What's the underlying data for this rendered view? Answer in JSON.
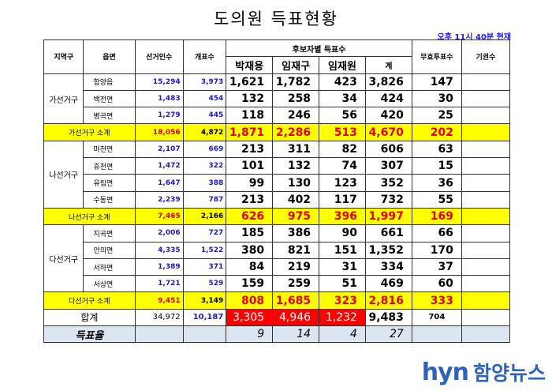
{
  "title": "도의원 득표현황",
  "timestamp": "오후 11시 40분 현재",
  "headers": {
    "region": "지역구",
    "town": "읍면",
    "voters": "선거인수",
    "ballots": "개표수",
    "candidates_group": "후보자별 득표수",
    "candidates": [
      "박재용",
      "임재구",
      "임재원"
    ],
    "sum": "계",
    "invalid": "무효투표수",
    "abstain": "기권수"
  },
  "districts": [
    {
      "name": "가선거구",
      "rows": [
        {
          "town": "함양읍",
          "voters": "15,294",
          "ballots": "3,973",
          "c1": "1,621",
          "c2": "1,782",
          "c3": "423",
          "sum": "3,826",
          "invalid": "147"
        },
        {
          "town": "백전면",
          "voters": "1,483",
          "ballots": "454",
          "c1": "132",
          "c2": "258",
          "c3": "34",
          "sum": "424",
          "invalid": "30"
        },
        {
          "town": "병곡면",
          "voters": "1,279",
          "ballots": "445",
          "c1": "118",
          "c2": "246",
          "c3": "56",
          "sum": "420",
          "invalid": "25"
        }
      ],
      "subtotal": {
        "label": "가선거구 소계",
        "voters": "18,056",
        "ballots": "4,872",
        "c1": "1,871",
        "c2": "2,286",
        "c3": "513",
        "sum": "4,670",
        "invalid": "202"
      }
    },
    {
      "name": "나선거구",
      "rows": [
        {
          "town": "마천면",
          "voters": "2,107",
          "ballots": "669",
          "c1": "213",
          "c2": "311",
          "c3": "82",
          "sum": "606",
          "invalid": "63"
        },
        {
          "town": "휴천면",
          "voters": "1,472",
          "ballots": "322",
          "c1": "101",
          "c2": "132",
          "c3": "74",
          "sum": "307",
          "invalid": "15"
        },
        {
          "town": "유림면",
          "voters": "1,647",
          "ballots": "388",
          "c1": "99",
          "c2": "130",
          "c3": "123",
          "sum": "352",
          "invalid": "36"
        },
        {
          "town": "수동면",
          "voters": "2,239",
          "ballots": "787",
          "c1": "213",
          "c2": "402",
          "c3": "117",
          "sum": "732",
          "invalid": "55"
        }
      ],
      "subtotal": {
        "label": "나선거구 소계",
        "voters": "7,465",
        "ballots": "2,166",
        "c1": "626",
        "c2": "975",
        "c3": "396",
        "sum": "1,997",
        "invalid": "169"
      }
    },
    {
      "name": "다선거구",
      "rows": [
        {
          "town": "지곡면",
          "voters": "2,006",
          "ballots": "727",
          "c1": "185",
          "c2": "386",
          "c3": "90",
          "sum": "661",
          "invalid": "66"
        },
        {
          "town": "안의면",
          "voters": "4,335",
          "ballots": "1,522",
          "c1": "380",
          "c2": "821",
          "c3": "151",
          "sum": "1,352",
          "invalid": "170"
        },
        {
          "town": "서하면",
          "voters": "1,389",
          "ballots": "371",
          "c1": "84",
          "c2": "219",
          "c3": "31",
          "sum": "334",
          "invalid": "37"
        },
        {
          "town": "서상면",
          "voters": "1,721",
          "ballots": "529",
          "c1": "159",
          "c2": "259",
          "c3": "51",
          "sum": "469",
          "invalid": "60"
        }
      ],
      "subtotal": {
        "label": "다선거구 소계",
        "voters": "9,451",
        "ballots": "3,149",
        "c1": "808",
        "c2": "1,685",
        "c3": "323",
        "sum": "2,816",
        "invalid": "333"
      }
    }
  ],
  "total": {
    "label": "합계",
    "voters": "34,972",
    "ballots": "10,187",
    "c1": "3,305",
    "c2": "4,946",
    "c3": "1,232",
    "sum": "9,483",
    "invalid": "704"
  },
  "rate": {
    "label": "득표율",
    "c1": "9",
    "c2": "14",
    "c3": "4",
    "sum": "27"
  },
  "logo": {
    "en": "hyn",
    "ko": "함양뉴스"
  },
  "colors": {
    "subtotal_bg": "#ffff00",
    "highlight_red": "#ff0000",
    "rate_bg": "#dce6f1",
    "blue_text": "#1a1acc",
    "logo": "#2e63b8"
  }
}
